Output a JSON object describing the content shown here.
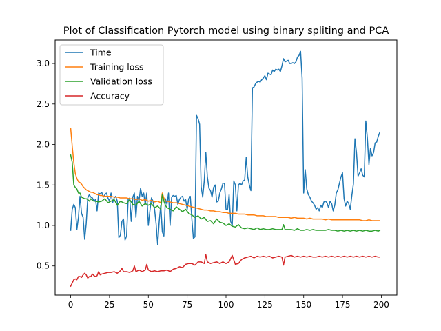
{
  "chart_data": {
    "type": "line",
    "title": "Plot of Classification Pytorch model using binary spliting and PCA",
    "xlabel": "",
    "ylabel": "",
    "xlim": [
      -10,
      210
    ],
    "ylim": [
      0.14,
      3.29
    ],
    "xticks": [
      0,
      25,
      50,
      75,
      100,
      125,
      150,
      175,
      200
    ],
    "xtick_labels": [
      "0",
      "25",
      "50",
      "75",
      "100",
      "125",
      "150",
      "175",
      "200"
    ],
    "yticks": [
      0.5,
      1.0,
      1.5,
      2.0,
      2.5,
      3.0
    ],
    "ytick_labels": [
      "0.5",
      "1.0",
      "1.5",
      "2.0",
      "2.5",
      "3.0"
    ],
    "grid": false,
    "legend_position": "top-left",
    "series": [
      {
        "name": "Time",
        "color": "#1f77b4",
        "x": [
          0,
          1,
          2,
          3,
          4,
          5,
          6,
          7,
          8,
          9,
          10,
          11,
          12,
          13,
          14,
          15,
          16,
          17,
          18,
          19,
          20,
          21,
          22,
          23,
          24,
          25,
          26,
          27,
          28,
          29,
          30,
          31,
          32,
          33,
          34,
          35,
          36,
          37,
          38,
          39,
          40,
          41,
          42,
          43,
          44,
          45,
          46,
          47,
          48,
          49,
          50,
          51,
          52,
          53,
          54,
          55,
          56,
          57,
          58,
          59,
          60,
          61,
          62,
          63,
          64,
          65,
          66,
          67,
          68,
          69,
          70,
          71,
          72,
          73,
          74,
          75,
          76,
          77,
          78,
          79,
          80,
          81,
          82,
          83,
          84,
          85,
          86,
          87,
          88,
          89,
          90,
          91,
          92,
          93,
          94,
          95,
          96,
          97,
          98,
          99,
          100,
          101,
          102,
          103,
          104,
          105,
          106,
          107,
          108,
          109,
          110,
          111,
          112,
          113,
          114,
          115,
          116,
          117,
          118,
          119,
          120,
          121,
          122,
          123,
          124,
          125,
          126,
          127,
          128,
          129,
          130,
          131,
          132,
          133,
          134,
          135,
          136,
          137,
          138,
          139,
          140,
          141,
          142,
          143,
          144,
          145,
          146,
          147,
          148,
          149,
          150,
          151,
          152,
          153,
          154,
          155,
          156,
          157,
          158,
          159,
          160,
          161,
          162,
          163,
          164,
          165,
          166,
          167,
          168,
          169,
          170,
          171,
          172,
          173,
          174,
          175,
          176,
          177,
          178,
          179,
          180,
          181,
          182,
          183,
          184,
          185,
          186,
          187,
          188,
          189,
          190,
          191,
          192,
          193,
          194,
          195,
          196,
          197,
          198,
          199
        ],
        "y": [
          0.94,
          1.2,
          1.26,
          1.22,
          0.95,
          1.1,
          1.36,
          1.15,
          1.1,
          0.83,
          1.02,
          1.34,
          1.38,
          1.35,
          1.34,
          1.3,
          1.32,
          1.18,
          1.4,
          1.39,
          1.41,
          1.35,
          1.38,
          1.4,
          1.34,
          1.3,
          1.4,
          1.28,
          1.34,
          1.36,
          1.3,
          0.85,
          0.88,
          1.05,
          1.08,
          0.82,
          0.87,
          1.32,
          1.34,
          1.05,
          1.35,
          1.4,
          1.1,
          1.36,
          1.3,
          1.46,
          1.36,
          1.4,
          1.26,
          1.4,
          1.0,
          1.18,
          1.34,
          1.3,
          1.2,
          1.02,
          0.76,
          1.05,
          1.25,
          0.92,
          0.87,
          1.33,
          1.26,
          1.4,
          1.0,
          1.35,
          1.37,
          1.36,
          1.37,
          1.26,
          1.32,
          1.35,
          1.36,
          1.3,
          1.32,
          1.2,
          1.33,
          1.36,
          1.08,
          0.84,
          0.86,
          2.36,
          2.32,
          2.25,
          1.48,
          1.35,
          1.55,
          1.9,
          1.6,
          1.46,
          1.43,
          1.35,
          1.47,
          1.5,
          1.29,
          1.3,
          1.4,
          1.45,
          1.52,
          1.52,
          1.2,
          1.2,
          1.38,
          1.05,
          1.0,
          1.55,
          1.5,
          1.18,
          1.5,
          1.52,
          1.5,
          1.55,
          1.56,
          1.84,
          1.6,
          1.5,
          1.43,
          2.7,
          2.71,
          2.75,
          2.77,
          2.78,
          2.77,
          2.8,
          2.82,
          2.85,
          2.8,
          2.88,
          2.87,
          2.86,
          2.92,
          2.9,
          2.93,
          2.92,
          2.93,
          2.9,
          2.97,
          3.06,
          3.02,
          3.03,
          3.04,
          3.0,
          3.0,
          3.01,
          3.0,
          3.02,
          3.08,
          3.1,
          3.15,
          2.82,
          1.4,
          1.69,
          1.45,
          1.38,
          1.35,
          1.3,
          1.28,
          1.25,
          1.2,
          1.22,
          1.18,
          1.25,
          1.22,
          1.29,
          1.3,
          1.28,
          1.22,
          1.3,
          1.27,
          1.18,
          1.25,
          1.4,
          1.44,
          1.52,
          1.6,
          1.65,
          1.33,
          1.24,
          1.3,
          1.27,
          1.2,
          1.37,
          1.51,
          2.07,
          1.9,
          1.61,
          1.65,
          1.7,
          1.62,
          1.6,
          2.29,
          2.08,
          1.75,
          1.95,
          1.86,
          1.9,
          2.02,
          2.03,
          2.1,
          2.15
        ]
      },
      {
        "name": "Training loss",
        "color": "#ff7f0e",
        "x": [
          0,
          1,
          2,
          3,
          4,
          5,
          6,
          7,
          8,
          9,
          10,
          11,
          12,
          13,
          14,
          15,
          16,
          17,
          18,
          19,
          20,
          22,
          24,
          26,
          28,
          30,
          32,
          34,
          36,
          38,
          40,
          42,
          44,
          46,
          48,
          50,
          52,
          54,
          56,
          58,
          59,
          60,
          61,
          62,
          64,
          66,
          68,
          70,
          72,
          74,
          76,
          78,
          80,
          82,
          84,
          86,
          88,
          90,
          92,
          94,
          96,
          98,
          100,
          102,
          104,
          106,
          108,
          110,
          112,
          114,
          116,
          118,
          120,
          122,
          124,
          126,
          128,
          130,
          132,
          134,
          136,
          138,
          140,
          142,
          144,
          146,
          148,
          150,
          152,
          154,
          156,
          158,
          160,
          162,
          164,
          166,
          168,
          170,
          172,
          174,
          176,
          178,
          180,
          182,
          184,
          186,
          188,
          190,
          192,
          194,
          196,
          198,
          199
        ],
        "y": [
          2.2,
          1.98,
          1.78,
          1.64,
          1.58,
          1.54,
          1.53,
          1.51,
          1.48,
          1.46,
          1.44,
          1.43,
          1.42,
          1.41,
          1.41,
          1.4,
          1.39,
          1.38,
          1.38,
          1.37,
          1.37,
          1.36,
          1.36,
          1.36,
          1.35,
          1.35,
          1.34,
          1.34,
          1.34,
          1.33,
          1.33,
          1.32,
          1.33,
          1.31,
          1.32,
          1.3,
          1.31,
          1.29,
          1.3,
          1.28,
          1.4,
          1.34,
          1.3,
          1.3,
          1.29,
          1.28,
          1.28,
          1.27,
          1.26,
          1.25,
          1.24,
          1.23,
          1.22,
          1.21,
          1.2,
          1.19,
          1.19,
          1.18,
          1.18,
          1.17,
          1.17,
          1.16,
          1.16,
          1.15,
          1.15,
          1.15,
          1.14,
          1.14,
          1.14,
          1.13,
          1.13,
          1.13,
          1.12,
          1.12,
          1.12,
          1.11,
          1.11,
          1.11,
          1.11,
          1.1,
          1.1,
          1.1,
          1.1,
          1.09,
          1.1,
          1.09,
          1.09,
          1.09,
          1.08,
          1.09,
          1.08,
          1.08,
          1.08,
          1.08,
          1.07,
          1.08,
          1.07,
          1.07,
          1.07,
          1.07,
          1.07,
          1.07,
          1.07,
          1.07,
          1.07,
          1.07,
          1.06,
          1.06,
          1.07,
          1.06,
          1.06,
          1.06,
          1.06
        ]
      },
      {
        "name": "Validation loss",
        "color": "#2ca02c",
        "x": [
          0,
          1,
          2,
          3,
          4,
          5,
          6,
          7,
          8,
          9,
          10,
          11,
          12,
          13,
          14,
          15,
          16,
          18,
          20,
          22,
          24,
          26,
          28,
          30,
          32,
          34,
          36,
          38,
          40,
          42,
          44,
          46,
          48,
          50,
          52,
          54,
          56,
          58,
          59,
          60,
          61,
          62,
          64,
          66,
          68,
          70,
          72,
          74,
          76,
          78,
          80,
          82,
          84,
          86,
          88,
          90,
          92,
          94,
          96,
          98,
          100,
          102,
          104,
          106,
          108,
          110,
          112,
          114,
          116,
          118,
          120,
          122,
          124,
          126,
          128,
          130,
          132,
          134,
          136,
          137,
          138,
          140,
          142,
          144,
          146,
          148,
          150,
          152,
          154,
          156,
          158,
          160,
          162,
          164,
          166,
          168,
          170,
          172,
          174,
          176,
          178,
          180,
          182,
          184,
          186,
          188,
          190,
          192,
          194,
          196,
          198,
          199
        ],
        "y": [
          1.87,
          1.78,
          1.5,
          1.47,
          1.45,
          1.4,
          1.4,
          1.35,
          1.34,
          1.33,
          1.33,
          1.32,
          1.3,
          1.33,
          1.31,
          1.3,
          1.3,
          1.29,
          1.3,
          1.33,
          1.28,
          1.3,
          1.32,
          1.25,
          1.3,
          1.28,
          1.27,
          1.32,
          1.26,
          1.25,
          1.3,
          1.24,
          1.27,
          1.25,
          1.27,
          1.22,
          1.24,
          1.2,
          1.38,
          1.3,
          1.25,
          1.22,
          1.2,
          1.18,
          1.23,
          1.2,
          1.17,
          1.2,
          1.15,
          1.13,
          1.1,
          1.12,
          1.08,
          1.1,
          1.05,
          1.06,
          1.02,
          1.08,
          1.04,
          1.03,
          1.0,
          1.02,
          0.99,
          0.98,
          1.01,
          0.97,
          0.96,
          0.97,
          0.96,
          0.95,
          0.97,
          0.95,
          0.96,
          0.95,
          0.95,
          0.96,
          0.95,
          0.95,
          0.95,
          1.01,
          0.95,
          0.95,
          0.95,
          0.94,
          0.96,
          0.94,
          0.94,
          0.95,
          0.94,
          0.95,
          0.94,
          0.94,
          0.94,
          0.94,
          0.95,
          0.94,
          0.94,
          0.93,
          0.94,
          0.93,
          0.94,
          0.93,
          0.94,
          0.93,
          0.94,
          0.93,
          0.94,
          0.93,
          0.93,
          0.94,
          0.93,
          0.94
        ]
      },
      {
        "name": "Accuracy",
        "color": "#d62728",
        "x": [
          0,
          1,
          2,
          3,
          4,
          5,
          6,
          7,
          8,
          9,
          10,
          11,
          12,
          13,
          14,
          15,
          16,
          17,
          18,
          19,
          20,
          22,
          24,
          26,
          28,
          30,
          32,
          33,
          34,
          36,
          38,
          40,
          41,
          42,
          44,
          46,
          48,
          49,
          50,
          52,
          54,
          56,
          58,
          60,
          62,
          64,
          66,
          68,
          70,
          72,
          74,
          76,
          78,
          80,
          82,
          84,
          86,
          87,
          88,
          90,
          92,
          94,
          96,
          98,
          100,
          102,
          104,
          106,
          108,
          110,
          112,
          114,
          116,
          118,
          120,
          122,
          124,
          126,
          128,
          130,
          132,
          134,
          136,
          137,
          138,
          140,
          142,
          144,
          146,
          148,
          150,
          152,
          154,
          156,
          158,
          160,
          162,
          164,
          166,
          168,
          170,
          172,
          174,
          176,
          178,
          180,
          182,
          184,
          186,
          188,
          190,
          192,
          194,
          196,
          198,
          199
        ],
        "y": [
          0.25,
          0.29,
          0.33,
          0.34,
          0.33,
          0.37,
          0.37,
          0.36,
          0.39,
          0.41,
          0.39,
          0.35,
          0.37,
          0.37,
          0.4,
          0.38,
          0.37,
          0.38,
          0.43,
          0.39,
          0.4,
          0.41,
          0.42,
          0.42,
          0.43,
          0.41,
          0.44,
          0.47,
          0.43,
          0.43,
          0.42,
          0.44,
          0.5,
          0.43,
          0.45,
          0.43,
          0.45,
          0.52,
          0.45,
          0.43,
          0.44,
          0.43,
          0.44,
          0.44,
          0.45,
          0.43,
          0.46,
          0.47,
          0.49,
          0.48,
          0.52,
          0.53,
          0.53,
          0.51,
          0.55,
          0.55,
          0.53,
          0.64,
          0.55,
          0.53,
          0.54,
          0.55,
          0.53,
          0.55,
          0.53,
          0.55,
          0.63,
          0.52,
          0.53,
          0.58,
          0.6,
          0.61,
          0.62,
          0.6,
          0.62,
          0.61,
          0.62,
          0.61,
          0.62,
          0.6,
          0.61,
          0.62,
          0.61,
          0.51,
          0.61,
          0.62,
          0.63,
          0.61,
          0.62,
          0.61,
          0.62,
          0.61,
          0.62,
          0.61,
          0.61,
          0.62,
          0.61,
          0.62,
          0.61,
          0.62,
          0.61,
          0.62,
          0.61,
          0.62,
          0.61,
          0.62,
          0.61,
          0.62,
          0.61,
          0.62,
          0.61,
          0.62,
          0.61,
          0.62,
          0.61,
          0.61
        ]
      }
    ]
  }
}
